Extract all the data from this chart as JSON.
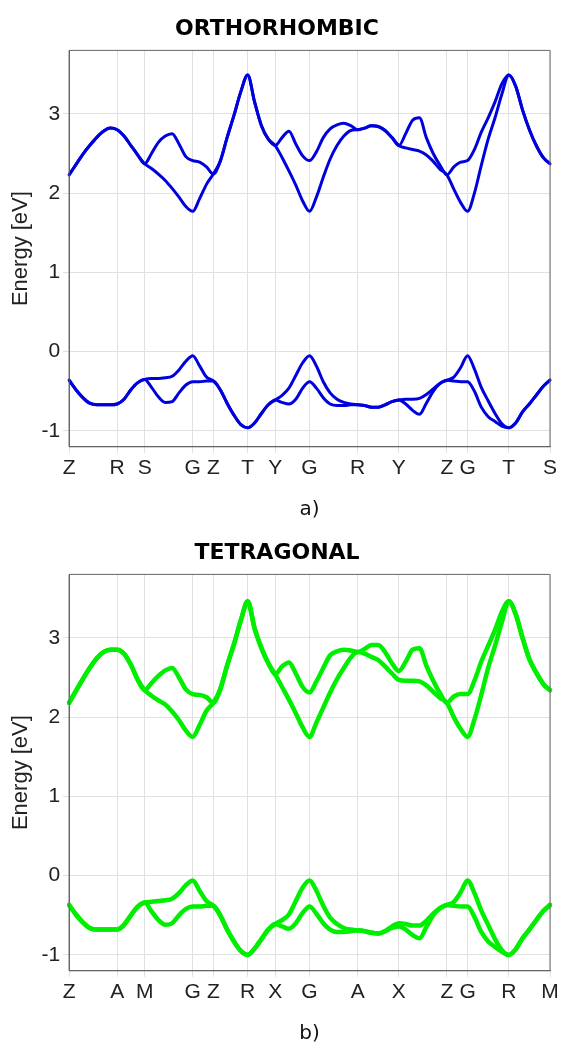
{
  "chart_data": [
    {
      "type": "line",
      "title": "ORTHORHOMBIC",
      "ylabel": "Energy [eV]",
      "annotations": [
        "a)"
      ],
      "grid": true,
      "legend": false,
      "marker": "none",
      "line_style": "solid",
      "ylim": [
        -1.2,
        3.8
      ],
      "yticks": [
        -1,
        0,
        1,
        2,
        3
      ],
      "categories": [
        "Z",
        null,
        null,
        null,
        null,
        null,
        null,
        "R",
        null,
        null,
        null,
        "S",
        null,
        null,
        null,
        null,
        null,
        null,
        "G",
        null,
        null,
        "Z",
        null,
        null,
        null,
        null,
        "T",
        null,
        null,
        null,
        "Y",
        null,
        null,
        null,
        null,
        "G",
        null,
        null,
        null,
        null,
        null,
        null,
        "R",
        null,
        null,
        null,
        null,
        null,
        "Y",
        null,
        null,
        null,
        null,
        null,
        null,
        "Z",
        null,
        null,
        "G",
        null,
        null,
        null,
        null,
        null,
        "T",
        null,
        null,
        null,
        null,
        null,
        "S"
      ],
      "series": [
        {
          "color": "#0000dd",
          "values": [
            2.23,
            2.36,
            2.49,
            2.6,
            2.7,
            2.78,
            2.82,
            2.8,
            2.72,
            2.6,
            2.48,
            2.37,
            2.5,
            2.64,
            2.72,
            2.75,
            2.62,
            2.46,
            2.41,
            2.39,
            2.33,
            2.24,
            2.4,
            2.7,
            2.98,
            3.28,
            3.49,
            3.15,
            2.85,
            2.68,
            2.6,
            2.7,
            2.78,
            2.62,
            2.47,
            2.41,
            2.52,
            2.7,
            2.81,
            2.86,
            2.88,
            2.85,
            2.8,
            2.82,
            2.85,
            2.84,
            2.79,
            2.7,
            2.6,
            2.75,
            2.92,
            2.95,
            2.7,
            2.5,
            2.35,
            2.23,
            2.33,
            2.39,
            2.41,
            2.55,
            2.77,
            2.95,
            3.15,
            3.38,
            3.49,
            3.35,
            3.05,
            2.8,
            2.6,
            2.45,
            2.37
          ]
        },
        {
          "color": "#0000dd",
          "values": [
            2.23,
            2.36,
            2.49,
            2.6,
            2.7,
            2.78,
            2.82,
            2.8,
            2.72,
            2.6,
            2.48,
            2.37,
            2.31,
            2.24,
            2.16,
            2.06,
            1.95,
            1.83,
            1.77,
            1.93,
            2.11,
            2.24,
            2.4,
            2.7,
            2.98,
            3.28,
            3.49,
            3.15,
            2.85,
            2.68,
            2.6,
            2.45,
            2.28,
            2.1,
            1.9,
            1.77,
            1.95,
            2.2,
            2.43,
            2.6,
            2.72,
            2.79,
            2.8,
            2.82,
            2.85,
            2.84,
            2.79,
            2.7,
            2.6,
            2.57,
            2.55,
            2.53,
            2.48,
            2.4,
            2.3,
            2.23,
            2.05,
            1.88,
            1.77,
            2.0,
            2.35,
            2.68,
            2.95,
            3.25,
            3.49,
            3.35,
            3.05,
            2.8,
            2.6,
            2.45,
            2.37
          ]
        },
        {
          "color": "#0000dd",
          "values": [
            -0.36,
            -0.48,
            -0.58,
            -0.65,
            -0.67,
            -0.67,
            -0.67,
            -0.66,
            -0.6,
            -0.48,
            -0.39,
            -0.35,
            -0.34,
            -0.34,
            -0.33,
            -0.31,
            -0.23,
            -0.12,
            -0.05,
            -0.18,
            -0.32,
            -0.37,
            -0.48,
            -0.65,
            -0.8,
            -0.92,
            -0.96,
            -0.9,
            -0.78,
            -0.67,
            -0.61,
            -0.55,
            -0.46,
            -0.3,
            -0.14,
            -0.05,
            -0.18,
            -0.38,
            -0.52,
            -0.6,
            -0.64,
            -0.66,
            -0.67,
            -0.68,
            -0.7,
            -0.7,
            -0.67,
            -0.63,
            -0.61,
            -0.6,
            -0.6,
            -0.59,
            -0.54,
            -0.47,
            -0.4,
            -0.36,
            -0.32,
            -0.2,
            -0.05,
            -0.22,
            -0.45,
            -0.62,
            -0.78,
            -0.91,
            -0.96,
            -0.9,
            -0.76,
            -0.66,
            -0.55,
            -0.44,
            -0.36
          ]
        },
        {
          "color": "#0000dd",
          "values": [
            -0.36,
            -0.48,
            -0.58,
            -0.65,
            -0.67,
            -0.67,
            -0.67,
            -0.66,
            -0.6,
            -0.48,
            -0.39,
            -0.35,
            -0.45,
            -0.57,
            -0.64,
            -0.63,
            -0.52,
            -0.42,
            -0.38,
            -0.38,
            -0.37,
            -0.37,
            -0.48,
            -0.65,
            -0.8,
            -0.92,
            -0.96,
            -0.9,
            -0.78,
            -0.67,
            -0.61,
            -0.64,
            -0.66,
            -0.6,
            -0.46,
            -0.38,
            -0.46,
            -0.58,
            -0.66,
            -0.68,
            -0.68,
            -0.67,
            -0.67,
            -0.68,
            -0.7,
            -0.7,
            -0.67,
            -0.63,
            -0.61,
            -0.66,
            -0.74,
            -0.79,
            -0.65,
            -0.5,
            -0.4,
            -0.36,
            -0.37,
            -0.38,
            -0.38,
            -0.5,
            -0.7,
            -0.82,
            -0.88,
            -0.94,
            -0.96,
            -0.9,
            -0.76,
            -0.66,
            -0.55,
            -0.44,
            -0.36
          ]
        }
      ]
    },
    {
      "type": "line",
      "title": "TETRAGONAL",
      "ylabel": "Energy [eV]",
      "annotations": [
        "b)"
      ],
      "grid": true,
      "legend": false,
      "marker": "none",
      "line_style": "solid",
      "ylim": [
        -1.2,
        3.8
      ],
      "yticks": [
        -1,
        0,
        1,
        2,
        3
      ],
      "categories": [
        "Z",
        null,
        null,
        null,
        null,
        null,
        null,
        "A",
        null,
        null,
        null,
        "M",
        null,
        null,
        null,
        null,
        null,
        null,
        "G",
        null,
        null,
        "Z",
        null,
        null,
        null,
        null,
        "R",
        null,
        null,
        null,
        "X",
        null,
        null,
        null,
        null,
        "G",
        null,
        null,
        null,
        null,
        null,
        null,
        "A",
        null,
        null,
        null,
        null,
        null,
        "X",
        null,
        null,
        null,
        null,
        null,
        null,
        "Z",
        null,
        null,
        "G",
        null,
        null,
        null,
        null,
        null,
        "R",
        null,
        null,
        null,
        null,
        null,
        "M"
      ],
      "series": [
        {
          "color": "#00ee00",
          "values": [
            2.18,
            2.33,
            2.48,
            2.62,
            2.74,
            2.82,
            2.85,
            2.85,
            2.8,
            2.66,
            2.47,
            2.34,
            2.43,
            2.52,
            2.59,
            2.62,
            2.5,
            2.35,
            2.29,
            2.28,
            2.25,
            2.18,
            2.35,
            2.65,
            2.92,
            3.22,
            3.46,
            3.12,
            2.87,
            2.68,
            2.54,
            2.64,
            2.69,
            2.55,
            2.38,
            2.31,
            2.45,
            2.62,
            2.78,
            2.83,
            2.85,
            2.84,
            2.82,
            2.86,
            2.91,
            2.91,
            2.82,
            2.68,
            2.58,
            2.7,
            2.85,
            2.87,
            2.65,
            2.46,
            2.3,
            2.18,
            2.26,
            2.29,
            2.29,
            2.46,
            2.7,
            2.9,
            3.1,
            3.33,
            3.46,
            3.3,
            3.0,
            2.73,
            2.56,
            2.42,
            2.34
          ]
        },
        {
          "color": "#00ee00",
          "values": [
            2.18,
            2.33,
            2.48,
            2.62,
            2.74,
            2.82,
            2.85,
            2.85,
            2.8,
            2.66,
            2.47,
            2.34,
            2.27,
            2.21,
            2.16,
            2.07,
            1.96,
            1.83,
            1.75,
            1.9,
            2.08,
            2.18,
            2.35,
            2.65,
            2.92,
            3.22,
            3.46,
            3.12,
            2.87,
            2.68,
            2.54,
            2.38,
            2.22,
            2.05,
            1.87,
            1.75,
            1.93,
            2.12,
            2.31,
            2.48,
            2.62,
            2.75,
            2.82,
            2.8,
            2.76,
            2.72,
            2.64,
            2.55,
            2.47,
            2.46,
            2.46,
            2.45,
            2.4,
            2.32,
            2.24,
            2.18,
            2.0,
            1.85,
            1.75,
            1.97,
            2.28,
            2.62,
            2.9,
            3.2,
            3.46,
            3.3,
            3.0,
            2.73,
            2.56,
            2.42,
            2.34
          ]
        },
        {
          "color": "#00ee00",
          "values": [
            -0.37,
            -0.49,
            -0.59,
            -0.66,
            -0.68,
            -0.68,
            -0.68,
            -0.68,
            -0.62,
            -0.5,
            -0.39,
            -0.34,
            -0.33,
            -0.32,
            -0.31,
            -0.29,
            -0.22,
            -0.12,
            -0.06,
            -0.19,
            -0.32,
            -0.38,
            -0.5,
            -0.68,
            -0.83,
            -0.95,
            -1.0,
            -0.92,
            -0.8,
            -0.68,
            -0.61,
            -0.56,
            -0.49,
            -0.32,
            -0.15,
            -0.06,
            -0.19,
            -0.38,
            -0.53,
            -0.61,
            -0.66,
            -0.68,
            -0.69,
            -0.7,
            -0.72,
            -0.73,
            -0.7,
            -0.64,
            -0.6,
            -0.61,
            -0.63,
            -0.63,
            -0.57,
            -0.48,
            -0.41,
            -0.37,
            -0.33,
            -0.21,
            -0.06,
            -0.22,
            -0.44,
            -0.62,
            -0.8,
            -0.94,
            -1.0,
            -0.93,
            -0.79,
            -0.68,
            -0.56,
            -0.45,
            -0.37
          ]
        },
        {
          "color": "#00ee00",
          "values": [
            -0.37,
            -0.49,
            -0.59,
            -0.66,
            -0.68,
            -0.68,
            -0.68,
            -0.68,
            -0.62,
            -0.5,
            -0.39,
            -0.34,
            -0.45,
            -0.56,
            -0.62,
            -0.6,
            -0.5,
            -0.42,
            -0.39,
            -0.39,
            -0.38,
            -0.38,
            -0.5,
            -0.68,
            -0.83,
            -0.95,
            -1.0,
            -0.92,
            -0.8,
            -0.68,
            -0.61,
            -0.64,
            -0.67,
            -0.6,
            -0.47,
            -0.39,
            -0.48,
            -0.6,
            -0.68,
            -0.71,
            -0.71,
            -0.7,
            -0.69,
            -0.7,
            -0.72,
            -0.73,
            -0.7,
            -0.66,
            -0.64,
            -0.68,
            -0.75,
            -0.79,
            -0.65,
            -0.5,
            -0.41,
            -0.37,
            -0.38,
            -0.39,
            -0.39,
            -0.52,
            -0.71,
            -0.83,
            -0.9,
            -0.96,
            -1.0,
            -0.93,
            -0.79,
            -0.68,
            -0.56,
            -0.45,
            -0.37
          ]
        }
      ]
    }
  ]
}
